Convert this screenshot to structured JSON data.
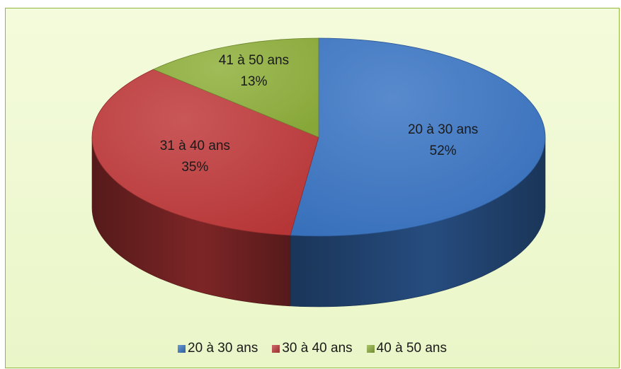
{
  "chart_data": {
    "type": "pie",
    "style": "3d",
    "slices": [
      {
        "label": "20 à 30 ans",
        "value": 52,
        "value_label": "52%",
        "color": "#3a75c4"
      },
      {
        "label": "31 à 40 ans",
        "value": 35,
        "value_label": "35%",
        "color": "#c0393a"
      },
      {
        "label": "41 à 50 ans",
        "value": 13,
        "value_label": "13%",
        "color": "#8fb03c"
      }
    ],
    "legend": {
      "position": "bottom",
      "entries": [
        {
          "label": "20 à 30 ans",
          "color": "#3a75c4"
        },
        {
          "label": "30 à 40 ans",
          "color": "#c0393a"
        },
        {
          "label": "40 à 50 ans",
          "color": "#8fb03c"
        }
      ]
    }
  },
  "colors": {
    "background": "#eef8cf",
    "border": "#8fb83c"
  }
}
